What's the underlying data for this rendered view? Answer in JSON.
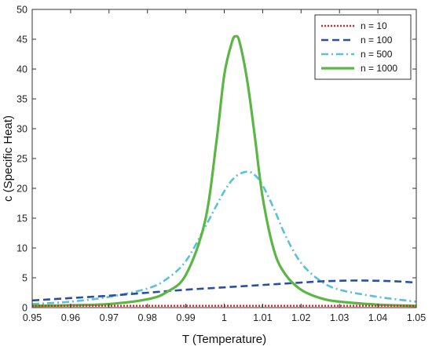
{
  "chart_data": {
    "type": "line",
    "title": "",
    "xlabel": "T (Temperature)",
    "ylabel": "c (Specific Heat)",
    "xlim": [
      0.95,
      1.05
    ],
    "ylim": [
      0,
      50
    ],
    "x_ticks": [
      "0.95",
      "0.96",
      "0.97",
      "0.98",
      "0.99",
      "1",
      "1.01",
      "1.02",
      "1.03",
      "1.04",
      "1.05"
    ],
    "y_ticks": [
      "0",
      "5",
      "10",
      "15",
      "20",
      "25",
      "30",
      "35",
      "40",
      "45",
      "50"
    ],
    "grid": false,
    "legend_position": "top-right",
    "series": [
      {
        "name": "n = 10",
        "color": "#d9262a",
        "style": "dotted",
        "x": [
          0.95,
          0.96,
          0.97,
          0.98,
          0.99,
          1.0,
          1.01,
          1.02,
          1.03,
          1.04,
          1.05
        ],
        "y": [
          0.3,
          0.3,
          0.3,
          0.3,
          0.3,
          0.3,
          0.3,
          0.3,
          0.3,
          0.3,
          0.3
        ]
      },
      {
        "name": "n = 100",
        "color": "#2b4fa0",
        "style": "dashed",
        "x": [
          0.95,
          0.96,
          0.97,
          0.98,
          0.99,
          1.0,
          1.01,
          1.02,
          1.025,
          1.03,
          1.035,
          1.04,
          1.045,
          1.05
        ],
        "y": [
          1.2,
          1.6,
          2.0,
          2.5,
          3.0,
          3.4,
          3.8,
          4.2,
          4.4,
          4.5,
          4.55,
          4.5,
          4.4,
          4.2
        ]
      },
      {
        "name": "n = 500",
        "color": "#5cc0d8",
        "style": "dashdot",
        "x": [
          0.95,
          0.96,
          0.97,
          0.98,
          0.985,
          0.99,
          0.995,
          1.0,
          1.003,
          1.006,
          1.008,
          1.01,
          1.013,
          1.016,
          1.02,
          1.025,
          1.03,
          1.04,
          1.05
        ],
        "y": [
          0.6,
          1.0,
          1.8,
          3.2,
          4.8,
          7.8,
          13.5,
          19.5,
          22.0,
          22.8,
          22.2,
          20.5,
          16.5,
          12.0,
          7.5,
          4.5,
          3.0,
          1.8,
          1.0
        ]
      },
      {
        "name": "n = 1000",
        "color": "#5cb646",
        "style": "solid",
        "x": [
          0.95,
          0.96,
          0.97,
          0.98,
          0.985,
          0.99,
          0.995,
          0.998,
          1.0,
          1.002,
          1.003,
          1.004,
          1.006,
          1.008,
          1.01,
          1.013,
          1.016,
          1.02,
          1.025,
          1.03,
          1.04,
          1.05
        ],
        "y": [
          0.3,
          0.4,
          0.6,
          1.4,
          2.6,
          5.5,
          14.5,
          28.0,
          39.0,
          44.5,
          45.5,
          44.5,
          38.0,
          28.5,
          18.5,
          9.5,
          5.5,
          3.0,
          1.6,
          1.0,
          0.5,
          0.3
        ]
      }
    ]
  }
}
